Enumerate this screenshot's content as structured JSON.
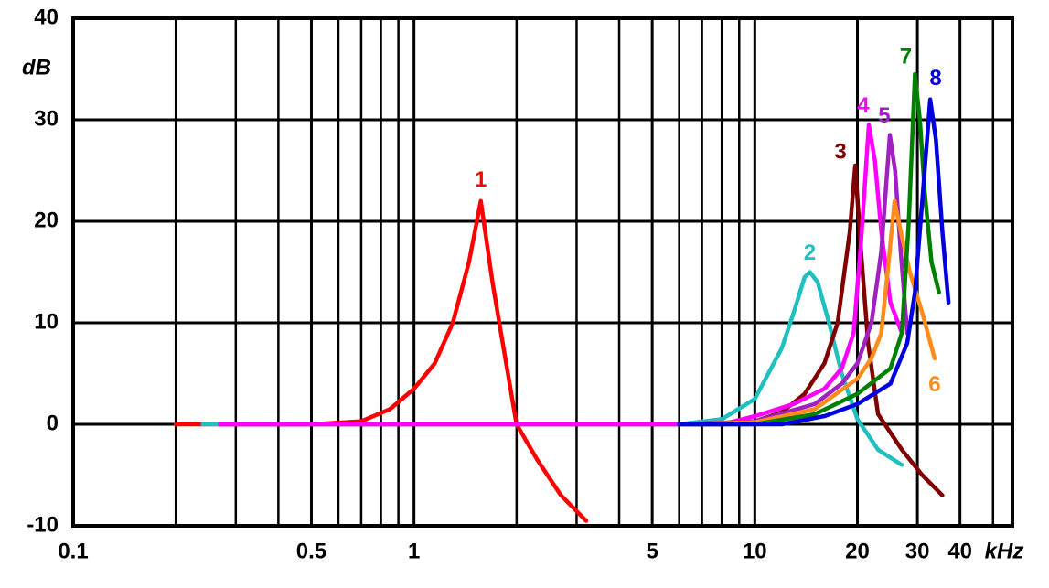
{
  "chart_data": {
    "type": "line",
    "log_x": true,
    "grid": true,
    "ylabel": "dB",
    "xlabel": "kHz",
    "xlim": [
      0.1,
      57
    ],
    "ylim": [
      -10,
      40
    ],
    "xticks": [
      0.1,
      0.5,
      1,
      5,
      10,
      20,
      30,
      40
    ],
    "xgrid": [
      0.2,
      0.3,
      0.4,
      0.6,
      0.7,
      0.8,
      0.9,
      2,
      3,
      4,
      6,
      7,
      8,
      9,
      50
    ],
    "yticks": [
      -10,
      0,
      10,
      20,
      30,
      40
    ],
    "series": [
      {
        "name": "1",
        "color": "#ff0000",
        "x": [
          0.2,
          0.5,
          0.7,
          0.85,
          1.0,
          1.15,
          1.3,
          1.45,
          1.57,
          1.7,
          1.8,
          2.0,
          2.3,
          2.7,
          3.2
        ],
        "values": [
          0,
          0,
          0.3,
          1.5,
          3.5,
          6,
          10,
          16,
          22,
          14,
          9,
          0,
          -3.5,
          -7,
          -9.5
        ]
      },
      {
        "name": "2",
        "color": "#20c0c0",
        "x": [
          0.24,
          3,
          6,
          8,
          10,
          12,
          13,
          14,
          14.5,
          15.3,
          16.5,
          18,
          20,
          23,
          27
        ],
        "values": [
          0,
          0,
          0,
          0.5,
          2.5,
          7.5,
          11,
          14.5,
          15,
          14,
          10,
          5,
          0.5,
          -2.5,
          -4
        ]
      },
      {
        "name": "3",
        "color": "#800000",
        "x": [
          0.27,
          5,
          8,
          10,
          12,
          14,
          16,
          17.5,
          19,
          19.7,
          20.5,
          21.5,
          23,
          27,
          31,
          35.5
        ],
        "values": [
          0,
          0,
          0,
          0.3,
          1.2,
          3,
          6,
          10,
          19,
          25.5,
          17,
          8,
          1,
          -2.5,
          -5,
          -7
        ]
      },
      {
        "name": "4",
        "color": "#ff00ff",
        "x": [
          0.27,
          5,
          8,
          10,
          13,
          16,
          18,
          19.5,
          20.5,
          21.6,
          22.5,
          23.5,
          25,
          27
        ],
        "values": [
          0,
          0,
          0,
          0.8,
          2,
          3.5,
          5.5,
          9,
          18,
          29.5,
          26,
          19,
          12,
          9
        ]
      },
      {
        "name": "5",
        "color": "#a020c0",
        "x": [
          6,
          10,
          15,
          18,
          20,
          22,
          23.5,
          24.9,
          25.8,
          26.8,
          28
        ],
        "values": [
          0,
          0.3,
          2,
          4,
          6,
          10,
          17,
          28.5,
          25,
          17,
          9
        ]
      },
      {
        "name": "6",
        "color": "#ff8c1a",
        "x": [
          6,
          10,
          15,
          20,
          22,
          23.5,
          24.7,
          25.7,
          26.8,
          28.5,
          31,
          33.7
        ],
        "values": [
          0,
          0.2,
          1.5,
          4.5,
          6.5,
          9,
          16,
          22,
          19,
          15,
          11,
          6.5
        ]
      },
      {
        "name": "7",
        "color": "#008000",
        "x": [
          6,
          10,
          15,
          20,
          25,
          27,
          28.3,
          29.5,
          30.5,
          31.5,
          33,
          34.7
        ],
        "values": [
          0,
          0,
          1,
          3,
          5.5,
          9,
          20,
          34.5,
          30,
          23,
          16,
          13
        ]
      },
      {
        "name": "8",
        "color": "#0000e0",
        "x": [
          6,
          12,
          16,
          20,
          25,
          28,
          29.5,
          31,
          32.7,
          34,
          35.5,
          37
        ],
        "values": [
          0,
          0,
          0.8,
          2,
          4,
          8,
          13,
          22,
          32,
          28,
          19,
          12
        ]
      }
    ]
  }
}
